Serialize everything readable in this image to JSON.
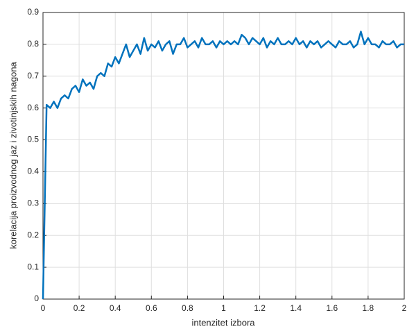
{
  "chart_data": {
    "type": "line",
    "xlabel": "intenzitet izbora",
    "ylabel": "korelacija proizvodnog jaz i zivotinjskih nagona",
    "x": [
      0,
      0.02,
      0.04,
      0.06,
      0.08,
      0.1,
      0.12,
      0.14,
      0.16,
      0.18,
      0.2,
      0.22,
      0.24,
      0.26,
      0.28,
      0.3,
      0.32,
      0.34,
      0.36,
      0.38,
      0.4,
      0.42,
      0.44,
      0.46,
      0.48,
      0.5,
      0.52,
      0.54,
      0.56,
      0.58,
      0.6,
      0.62,
      0.64,
      0.66,
      0.68,
      0.7,
      0.72,
      0.74,
      0.76,
      0.78,
      0.8,
      0.82,
      0.84,
      0.86,
      0.88,
      0.9,
      0.92,
      0.94,
      0.96,
      0.98,
      1,
      1.02,
      1.04,
      1.06,
      1.08,
      1.1,
      1.12,
      1.14,
      1.16,
      1.18,
      1.2,
      1.22,
      1.24,
      1.26,
      1.28,
      1.3,
      1.32,
      1.34,
      1.36,
      1.38,
      1.4,
      1.42,
      1.44,
      1.46,
      1.48,
      1.5,
      1.52,
      1.54,
      1.56,
      1.58,
      1.6,
      1.62,
      1.64,
      1.66,
      1.68,
      1.7,
      1.72,
      1.74,
      1.76,
      1.78,
      1.8,
      1.82,
      1.84,
      1.86,
      1.88,
      1.9,
      1.92,
      1.94,
      1.96,
      1.98,
      2
    ],
    "series": [
      {
        "color": "#0072bd",
        "values": [
          0,
          0.61,
          0.6,
          0.62,
          0.6,
          0.63,
          0.64,
          0.63,
          0.66,
          0.67,
          0.65,
          0.69,
          0.67,
          0.68,
          0.66,
          0.7,
          0.71,
          0.7,
          0.74,
          0.73,
          0.76,
          0.74,
          0.77,
          0.8,
          0.76,
          0.78,
          0.8,
          0.77,
          0.82,
          0.78,
          0.8,
          0.79,
          0.81,
          0.78,
          0.8,
          0.81,
          0.77,
          0.8,
          0.8,
          0.82,
          0.79,
          0.8,
          0.81,
          0.79,
          0.82,
          0.8,
          0.8,
          0.81,
          0.79,
          0.81,
          0.8,
          0.81,
          0.8,
          0.81,
          0.8,
          0.83,
          0.82,
          0.8,
          0.82,
          0.81,
          0.8,
          0.82,
          0.79,
          0.81,
          0.8,
          0.82,
          0.8,
          0.8,
          0.81,
          0.8,
          0.82,
          0.8,
          0.81,
          0.79,
          0.81,
          0.8,
          0.81,
          0.79,
          0.8,
          0.81,
          0.8,
          0.79,
          0.81,
          0.8,
          0.8,
          0.81,
          0.79,
          0.8,
          0.84,
          0.8,
          0.82,
          0.8,
          0.8,
          0.79,
          0.81,
          0.8,
          0.8,
          0.81,
          0.79,
          0.8,
          0.8
        ]
      }
    ],
    "xlim": [
      0,
      2
    ],
    "xticks": [
      0,
      0.2,
      0.4,
      0.6,
      0.8,
      1,
      1.2,
      1.4,
      1.6,
      1.8,
      2
    ],
    "ylim": [
      0,
      0.9
    ],
    "yticks": [
      0,
      0.1,
      0.2,
      0.3,
      0.4,
      0.5,
      0.6,
      0.7,
      0.8,
      0.9
    ],
    "grid": true
  }
}
